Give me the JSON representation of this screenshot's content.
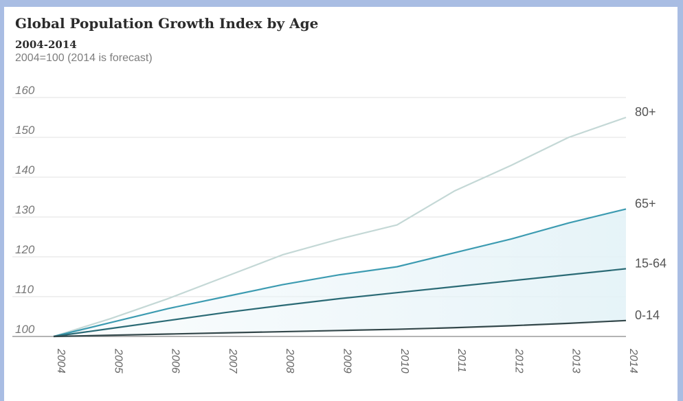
{
  "chart_data": {
    "type": "line",
    "title": "Global Population Growth Index by Age",
    "subtitle": "2004-2014",
    "note": "2004=100 (2014 is forecast)",
    "x": [
      "2004",
      "2005",
      "2006",
      "2007",
      "2008",
      "2009",
      "2010",
      "2011",
      "2012",
      "2013",
      "2014"
    ],
    "y_ticks": [
      "100",
      "110",
      "120",
      "130",
      "140",
      "150",
      "160"
    ],
    "ylim": [
      100,
      160
    ],
    "grid": true,
    "series": [
      {
        "name": "80+",
        "color": "#c4d8d6",
        "values": [
          100,
          104.5,
          109.5,
          115,
          120.5,
          124.5,
          128,
          136.5,
          143,
          150,
          155
        ]
      },
      {
        "name": "65+",
        "color": "#3c9bb1",
        "values": [
          100,
          103.5,
          107,
          110,
          113,
          115.5,
          117.5,
          121,
          124.5,
          128.5,
          132
        ]
      },
      {
        "name": "15-64",
        "color": "#2a6a75",
        "values": [
          100,
          102,
          104,
          106,
          107.8,
          109.5,
          111,
          112.5,
          114,
          115.5,
          117
        ]
      },
      {
        "name": "0-14",
        "color": "#33474a",
        "values": [
          100,
          100.3,
          100.6,
          100.9,
          101.2,
          101.5,
          101.8,
          102.2,
          102.7,
          103.3,
          104
        ]
      }
    ]
  }
}
